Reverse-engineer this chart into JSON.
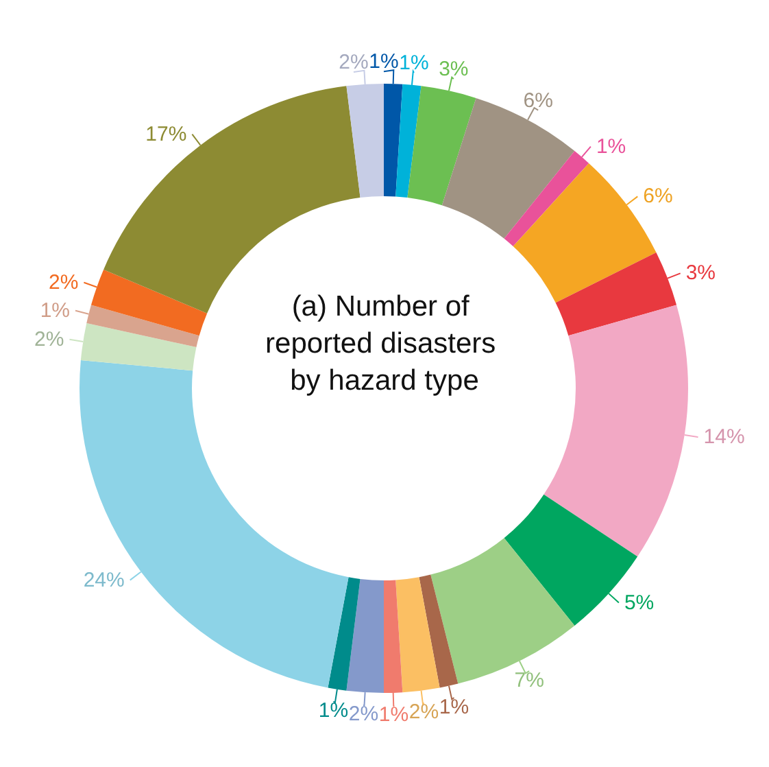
{
  "chart_data": {
    "type": "donut",
    "title": "(a) Number of reported disasters by hazard type",
    "categories": [
      null,
      null,
      null,
      null,
      null,
      null,
      null,
      null,
      null,
      null,
      null,
      null,
      null,
      null,
      null,
      null,
      null,
      null,
      null,
      null,
      null
    ],
    "values": [
      1,
      1,
      3,
      6,
      1,
      6,
      3,
      14,
      5,
      7,
      1,
      2,
      1,
      2,
      1,
      24,
      2,
      1,
      2,
      17,
      2
    ],
    "value_labels": [
      "1%",
      "1%",
      "3%",
      "6%",
      "1%",
      "6%",
      "3%",
      "14%",
      "5%",
      "7%",
      "1%",
      "2%",
      "1%",
      "2%",
      "1%",
      "24%",
      "2%",
      "1%",
      "2%",
      "17%",
      "2%"
    ],
    "colors": [
      "#0057a8",
      "#00b2d9",
      "#6cbf52",
      "#a09383",
      "#e9529a",
      "#f5a623",
      "#e8393f",
      "#f2a8c4",
      "#00a660",
      "#9dcf86",
      "#a8674a",
      "#fbbf63",
      "#f07b6d",
      "#8499cb",
      "#008b8b",
      "#8dd3e7",
      "#cde5c2",
      "#d9a48e",
      "#f26b21",
      "#8d8b33",
      "#c7cde6"
    ]
  }
}
